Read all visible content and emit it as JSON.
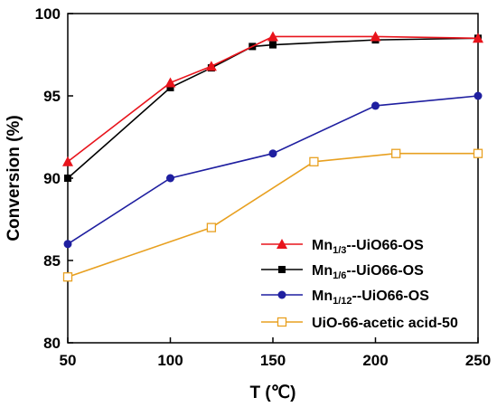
{
  "chart_data": {
    "type": "line",
    "xlabel": "T (℃)",
    "ylabel": "Conversion  (%)",
    "xlim": [
      50,
      250
    ],
    "ylim": [
      80,
      100
    ],
    "xticks": [
      "50",
      "100",
      "150",
      "200",
      "250"
    ],
    "yticks": [
      "80",
      "85",
      "90",
      "95",
      "100"
    ],
    "grid": false,
    "legend_position": "bottom-right",
    "series": [
      {
        "name": "Mn1/3--UiO66-OS",
        "label_parts": {
          "base": "Mn",
          "sub": "1/3",
          "rest": "--UiO66-OS"
        },
        "color": "#e8141c",
        "marker": "filled-triangle",
        "x": [
          50,
          100,
          120,
          150,
          200,
          250
        ],
        "y": [
          91.0,
          95.8,
          96.8,
          98.6,
          98.6,
          98.5
        ]
      },
      {
        "name": "Mn1/6--UiO66-OS",
        "label_parts": {
          "base": "Mn",
          "sub": "1/6",
          "rest": "--UiO66-OS"
        },
        "color": "#000000",
        "marker": "filled-square",
        "x": [
          50,
          100,
          120,
          140,
          150,
          200,
          250
        ],
        "y": [
          90.0,
          95.5,
          96.7,
          98.0,
          98.1,
          98.4,
          98.5
        ]
      },
      {
        "name": "Mn1/12--UiO66-OS",
        "label_parts": {
          "base": "Mn",
          "sub": "1/12",
          "rest": "--UiO66-OS"
        },
        "color": "#1f1fa0",
        "marker": "filled-circle",
        "x": [
          50,
          100,
          150,
          200,
          250
        ],
        "y": [
          86.0,
          90.0,
          91.5,
          94.4,
          95.0
        ]
      },
      {
        "name": "UiO-66-acetic acid-50",
        "label_parts": {
          "base": "UiO-66-acetic acid-50",
          "sub": "",
          "rest": ""
        },
        "color": "#e8a020",
        "marker": "open-square",
        "x": [
          50,
          120,
          170,
          210,
          250
        ],
        "y": [
          84.0,
          87.0,
          91.0,
          91.5,
          91.5
        ]
      }
    ]
  }
}
